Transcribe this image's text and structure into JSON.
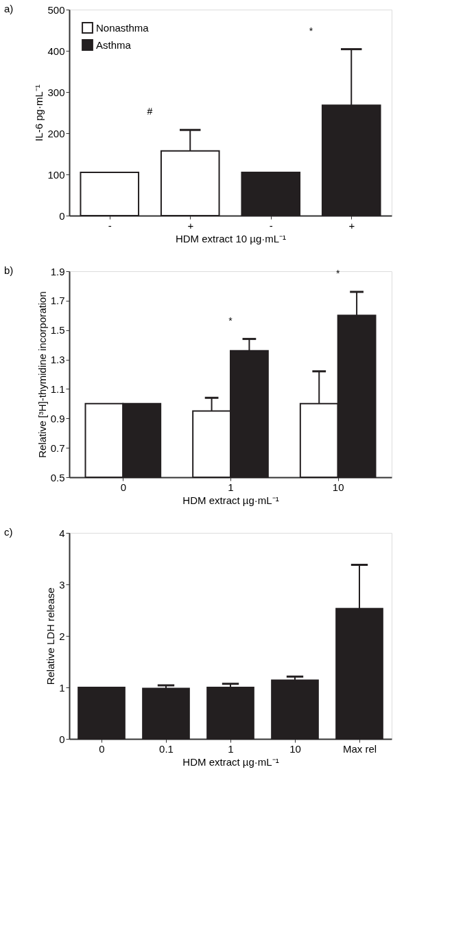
{
  "chart_data": [
    {
      "type": "bar",
      "title": "a)",
      "xlabel": "HDM extract 10 µg·mL⁻¹",
      "ylabel": "IL-6 pg·mL⁻¹",
      "categories": [
        "-",
        "+",
        "-",
        "+"
      ],
      "series": [
        {
          "name": "Nonasthma",
          "color": "#ffffff",
          "values": [
            105,
            157,
            null,
            null
          ],
          "errors": [
            null,
            [
              157,
              208
            ],
            null,
            null
          ]
        },
        {
          "name": "Asthma",
          "color": "#231f20",
          "values": [
            null,
            null,
            105,
            268
          ],
          "errors": [
            null,
            null,
            null,
            [
              268,
              404
            ]
          ]
        }
      ],
      "ylim": [
        0,
        500
      ],
      "yticks": [
        0,
        100,
        200,
        300,
        400,
        500
      ],
      "legend": "top left",
      "annotations": [
        "#",
        "*"
      ]
    },
    {
      "type": "bar",
      "title": "b)",
      "xlabel": "HDM extract µg·mL⁻¹",
      "ylabel": "Relative [³H]-thymidine incorporation",
      "categories": [
        "0",
        "1",
        "10"
      ],
      "series": [
        {
          "color": "#ffffff",
          "values": [
            1.0,
            0.95,
            1.0
          ],
          "errors": [
            null,
            [
              0.95,
              1.04
            ],
            [
              1.0,
              1.22
            ]
          ]
        },
        {
          "color": "#231f20",
          "values": [
            1.0,
            1.36,
            1.6
          ],
          "errors": [
            null,
            [
              1.36,
              1.44
            ],
            [
              1.6,
              1.76
            ]
          ]
        }
      ],
      "ylim": [
        0.5,
        1.9
      ],
      "yticks": [
        0.5,
        0.7,
        0.9,
        1.1,
        1.3,
        1.5,
        1.7,
        1.9
      ],
      "annotations": [
        "*",
        "*"
      ]
    },
    {
      "type": "bar",
      "title": "c)",
      "xlabel": "HDM extract µg·mL⁻¹",
      "ylabel": "Relative LDH release",
      "categories": [
        "0",
        "0.1",
        "1",
        "10",
        "Max rel"
      ],
      "values": [
        1.0,
        0.98,
        1.0,
        1.14,
        2.53
      ],
      "color": "#231f20",
      "errors": [
        null,
        [
          0.98,
          1.04
        ],
        [
          1.0,
          1.07
        ],
        [
          1.14,
          1.21
        ],
        [
          2.53,
          3.38
        ]
      ],
      "ylim": [
        0,
        4
      ],
      "yticks": [
        0,
        1,
        2,
        3,
        4
      ]
    }
  ]
}
